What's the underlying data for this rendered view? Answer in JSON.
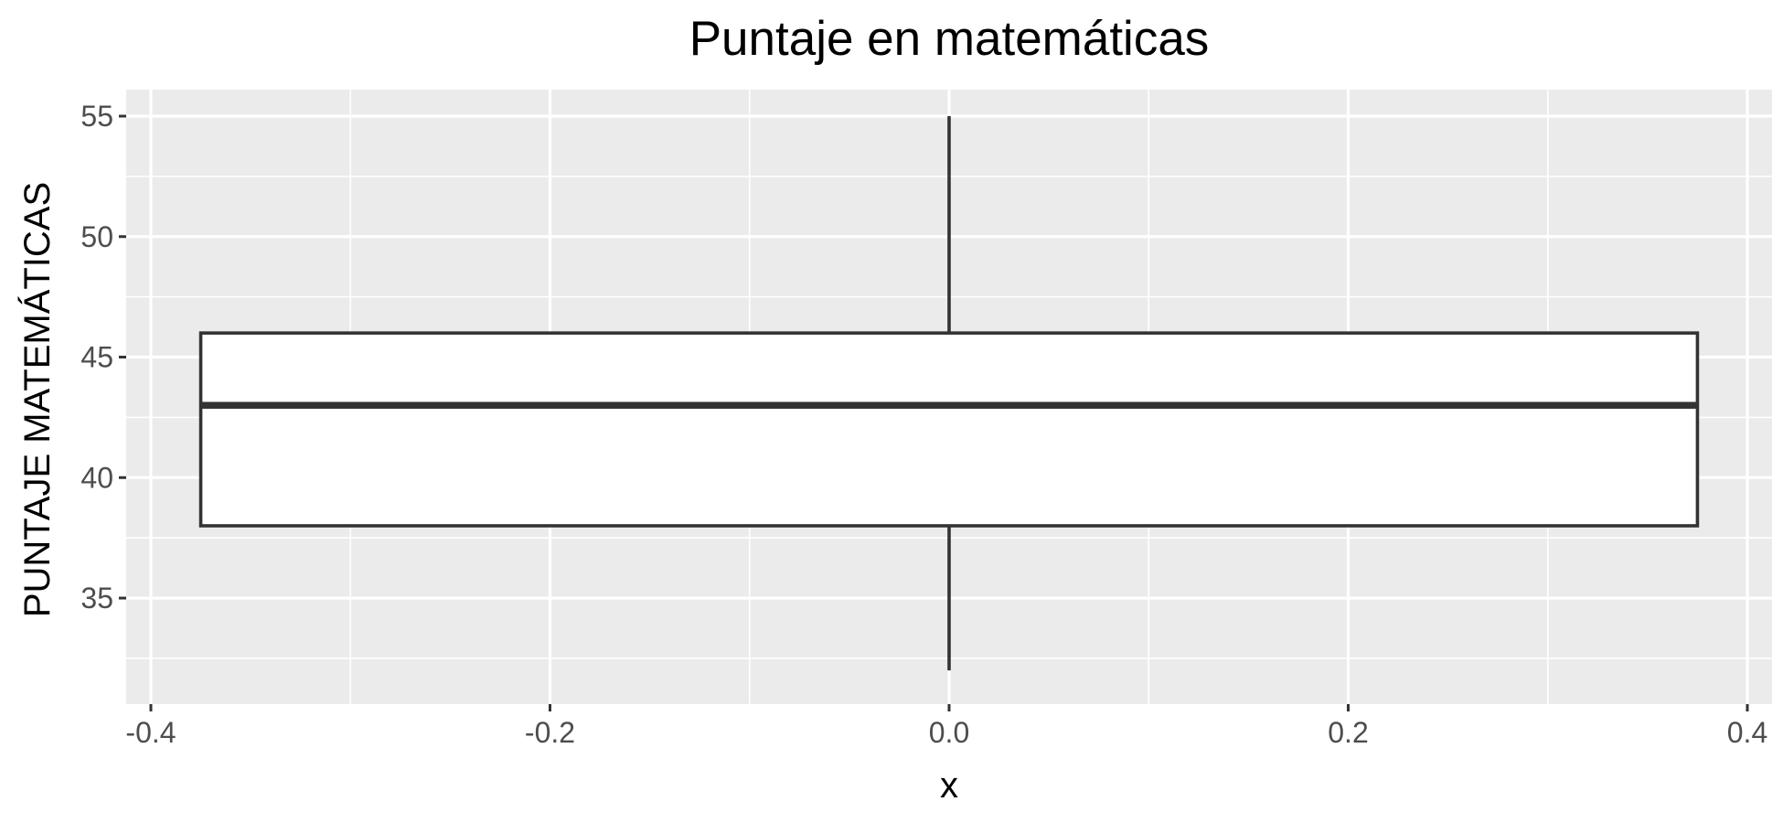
{
  "chart_data": {
    "type": "boxplot",
    "title": "Puntaje en matemáticas",
    "xlabel": "x",
    "ylabel": "PUNTAJE MATEMÁTICAS",
    "xlim": [
      -0.4,
      0.4
    ],
    "ylim": [
      30.6,
      56.1
    ],
    "x_ticks": [
      -0.4,
      -0.2,
      0.0,
      0.2,
      0.4
    ],
    "x_tick_labels": [
      "-0.4",
      "-0.2",
      "0.0",
      "0.2",
      "0.4"
    ],
    "y_ticks": [
      35,
      40,
      45,
      50,
      55
    ],
    "y_tick_labels": [
      "35",
      "40",
      "45",
      "50",
      "55"
    ],
    "grid": true,
    "legend": "none",
    "box": {
      "x_center": 0.0,
      "x_min": -0.375,
      "x_max": 0.375,
      "whisker_low": 32,
      "q1": 38,
      "median": 43,
      "q3": 46,
      "whisker_high": 55
    },
    "colors": {
      "panel_background": "#ebebeb",
      "grid": "#ffffff",
      "box_fill": "#ffffff",
      "box_stroke": "#333333",
      "tick_label": "#4d4d4d",
      "tick_mark": "#333333"
    }
  }
}
